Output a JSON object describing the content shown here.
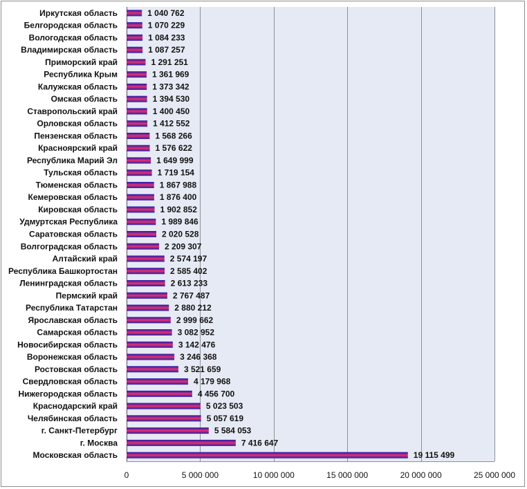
{
  "colors": {
    "plot_background": "#e6eaf4",
    "gridline": "#8a8f99",
    "bar_gradient": [
      "#1a1ab4",
      "#e8306a",
      "#2020b0"
    ]
  },
  "chart_data": {
    "type": "bar",
    "orientation": "horizontal",
    "title": "",
    "xlabel": "",
    "ylabel": "",
    "xlim": [
      0,
      25000000
    ],
    "grid": true,
    "legend": "none",
    "categories": [
      "Иркутская область",
      "Белгородская область",
      "Вологодская область",
      "Владимирская область",
      "Приморский край",
      "Республика Крым",
      "Калужская область",
      "Омская область",
      "Ставропольский край",
      "Орловская область",
      "Пензенская область",
      "Красноярский край",
      "Республика Марий Эл",
      "Тульская область",
      "Тюменская область",
      "Кемеровская область",
      "Кировская область",
      "Удмуртская Республика",
      "Саратовская область",
      "Волгоградская область",
      "Алтайский край",
      "Республика Башкортостан",
      "Ленинградская область",
      "Пермский край",
      "Республика Татарстан",
      "Ярославская область",
      "Самарская область",
      "Новосибирская область",
      "Воронежская область",
      "Ростовская область",
      "Свердловская область",
      "Нижегородская область",
      "Краснодарский край",
      "Челябинская область",
      "г. Санкт-Петербург",
      "г. Москва",
      "Московская область"
    ],
    "values": [
      1040762,
      1070229,
      1084233,
      1087257,
      1291251,
      1361969,
      1373342,
      1394530,
      1400450,
      1412552,
      1568266,
      1576622,
      1649999,
      1719154,
      1867988,
      1876400,
      1902852,
      1989846,
      2020528,
      2209307,
      2574197,
      2585402,
      2613233,
      2767487,
      2880212,
      2999662,
      3082952,
      3142476,
      3246368,
      3521659,
      4179968,
      4456700,
      5023503,
      5057619,
      5584053,
      7416647,
      19115499
    ],
    "value_labels": [
      "1 040 762",
      "1 070 229",
      "1 084 233",
      "1 087 257",
      "1 291 251",
      "1 361 969",
      "1 373 342",
      "1 394 530",
      "1 400 450",
      "1 412 552",
      "1 568 266",
      "1 576 622",
      "1 649 999",
      "1 719 154",
      "1 867 988",
      "1 876 400",
      "1 902 852",
      "1 989 846",
      "2 020 528",
      "2 209 307",
      "2 574 197",
      "2 585 402",
      "2 613 233",
      "2 767 487",
      "2 880 212",
      "2 999 662",
      "3 082 952",
      "3 142 476",
      "3 246 368",
      "3 521 659",
      "4 179 968",
      "4 456 700",
      "5 023 503",
      "5 057 619",
      "5 584 053",
      "7 416 647",
      "19 115 499"
    ],
    "x_ticks": [
      0,
      5000000,
      10000000,
      15000000,
      20000000,
      25000000
    ],
    "x_tick_labels": [
      "0",
      "5 000 000",
      "10 000 000",
      "15 000 000",
      "20 000 000",
      "25 000 000"
    ]
  }
}
